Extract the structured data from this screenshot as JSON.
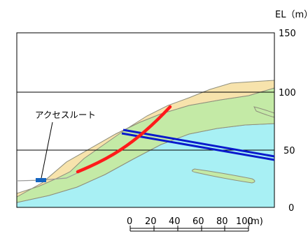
{
  "axis": {
    "unit_label": "EL（m）",
    "ticks": [
      {
        "value": 150,
        "label": "150"
      },
      {
        "value": 100,
        "label": "100"
      },
      {
        "value": 50,
        "label": "50"
      },
      {
        "value": 0,
        "label": "0"
      }
    ],
    "range": [
      0,
      150
    ]
  },
  "annotation": {
    "access_route": "アクセスルート"
  },
  "scale_bar": {
    "unit": "(m)",
    "ticks": [
      "0",
      "20",
      "40",
      "60",
      "80",
      "100"
    ]
  },
  "colors": {
    "upper_layer": "#f7e3ac",
    "middle_layer": "#c4eaa6",
    "rock_base": "#a8f0f4",
    "outline": "#8f8f7d",
    "tunnel": "#0a1acc",
    "slope_face": "#ff1a1a",
    "access_route_marker": "#1565c0"
  }
}
